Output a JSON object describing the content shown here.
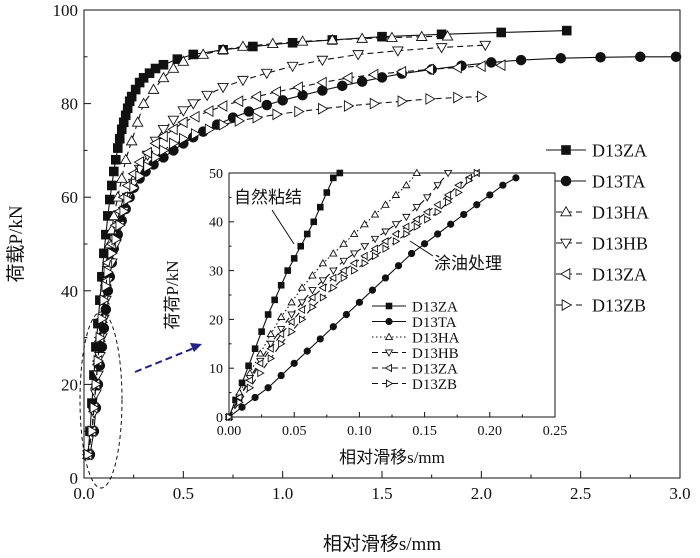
{
  "chart_data": [
    {
      "type": "line",
      "xlabel": "相对滑移s/mm",
      "ylabel": "荷载P/kN",
      "xlim": [
        0,
        3.0
      ],
      "ylim": [
        0,
        100
      ],
      "xticks": [
        "0.0",
        "0.5",
        "1.0",
        "1.5",
        "2.0",
        "2.5",
        "3.0"
      ],
      "yticks": [
        "0",
        "20",
        "40",
        "60",
        "80",
        "100"
      ],
      "legend_position": "right",
      "series": [
        {
          "name": "D13ZA",
          "style": "solid",
          "marker": "square-filled",
          "x": [
            0.02,
            0.03,
            0.04,
            0.05,
            0.06,
            0.07,
            0.08,
            0.09,
            0.1,
            0.11,
            0.12,
            0.13,
            0.14,
            0.15,
            0.16,
            0.17,
            0.18,
            0.19,
            0.2,
            0.21,
            0.22,
            0.23,
            0.24,
            0.26,
            0.28,
            0.3,
            0.33,
            0.36,
            0.4,
            0.47,
            0.55,
            0.7,
            0.85,
            1.05,
            1.25,
            1.5,
            1.8,
            2.1,
            2.43
          ],
          "y": [
            5,
            10,
            16,
            22,
            28,
            33,
            38,
            43,
            48,
            52,
            56,
            59.5,
            62.5,
            65.5,
            68,
            70.5,
            72.5,
            74.5,
            76,
            77.5,
            79,
            80.5,
            81.5,
            83,
            84.5,
            85.5,
            86.5,
            87.5,
            88.3,
            89.5,
            90.5,
            91.5,
            92.2,
            93,
            93.6,
            94.3,
            94.8,
            95.2,
            95.6
          ]
        },
        {
          "name": "D13TA",
          "style": "solid",
          "marker": "circle-filled",
          "x": [
            0.03,
            0.05,
            0.06,
            0.07,
            0.08,
            0.09,
            0.1,
            0.11,
            0.12,
            0.13,
            0.14,
            0.15,
            0.17,
            0.19,
            0.21,
            0.23,
            0.25,
            0.28,
            0.31,
            0.35,
            0.4,
            0.45,
            0.5,
            0.55,
            0.6,
            0.67,
            0.75,
            0.83,
            0.92,
            1.0,
            1.1,
            1.2,
            1.3,
            1.4,
            1.5,
            1.6,
            1.75,
            1.9,
            2.05,
            2.2,
            2.4,
            2.6,
            2.8,
            2.98
          ],
          "y": [
            5,
            10,
            15,
            20,
            24,
            28,
            32,
            36,
            40,
            43,
            46,
            49,
            52,
            55,
            57.5,
            60,
            62,
            64,
            65.5,
            67,
            68.5,
            70,
            71.5,
            72.8,
            74,
            75.5,
            77,
            78.3,
            79.7,
            80.7,
            81.8,
            82.8,
            83.8,
            84.7,
            85.6,
            86.4,
            87.3,
            88.1,
            88.8,
            89.3,
            89.7,
            89.9,
            90,
            90
          ]
        },
        {
          "name": "D13HA",
          "style": "dashed",
          "marker": "triangle-up-open",
          "x": [
            0.02,
            0.04,
            0.05,
            0.06,
            0.07,
            0.08,
            0.09,
            0.1,
            0.11,
            0.12,
            0.13,
            0.14,
            0.15,
            0.17,
            0.19,
            0.21,
            0.24,
            0.27,
            0.3,
            0.35,
            0.4,
            0.45,
            0.5,
            0.6,
            0.7,
            0.8,
            0.95,
            1.1,
            1.25,
            1.4,
            1.55,
            1.7,
            1.83
          ],
          "y": [
            5,
            10,
            15,
            20,
            25,
            30,
            34,
            38,
            42,
            46,
            50,
            53,
            56,
            60,
            64,
            68,
            72,
            76,
            80,
            83,
            85.5,
            87.5,
            89,
            90.5,
            91.5,
            92.2,
            92.8,
            93.3,
            93.6,
            93.9,
            94.1,
            94.3,
            94.4
          ]
        },
        {
          "name": "D13HB",
          "style": "dashed",
          "marker": "triangle-down-open",
          "x": [
            0.02,
            0.04,
            0.05,
            0.06,
            0.07,
            0.08,
            0.09,
            0.1,
            0.11,
            0.12,
            0.14,
            0.16,
            0.18,
            0.2,
            0.22,
            0.25,
            0.28,
            0.32,
            0.36,
            0.4,
            0.45,
            0.5,
            0.55,
            0.62,
            0.7,
            0.8,
            0.92,
            1.05,
            1.2,
            1.38,
            1.58,
            1.8,
            2.02
          ],
          "y": [
            5,
            10,
            14,
            18,
            22,
            26,
            30,
            34,
            38,
            42,
            46,
            50,
            54,
            57,
            60,
            63,
            66,
            69,
            72,
            74.5,
            76.5,
            78.5,
            80,
            81.8,
            83.5,
            85,
            86.5,
            88,
            89.3,
            90.5,
            91.3,
            92,
            92.5
          ]
        },
        {
          "name": "D13ZA",
          "style": "dashed",
          "marker": "triangle-left-open",
          "x": [
            0.02,
            0.04,
            0.05,
            0.06,
            0.07,
            0.08,
            0.09,
            0.1,
            0.11,
            0.12,
            0.14,
            0.16,
            0.18,
            0.2,
            0.22,
            0.25,
            0.28,
            0.32,
            0.36,
            0.4,
            0.45,
            0.5,
            0.56,
            0.63,
            0.7,
            0.78,
            0.87,
            0.97,
            1.08,
            1.2,
            1.33,
            1.46,
            1.6,
            1.74,
            1.88,
            2.0,
            2.1
          ],
          "y": [
            5,
            10,
            15,
            20,
            25,
            30,
            34,
            38,
            42,
            46,
            50,
            54,
            57,
            60,
            62.5,
            65,
            67.5,
            69.5,
            71.5,
            73,
            74.5,
            76,
            77.2,
            78.4,
            79.5,
            80.5,
            81.5,
            82.5,
            83.5,
            84.5,
            85.5,
            86.2,
            86.8,
            87.3,
            87.7,
            88,
            88.2
          ]
        },
        {
          "name": "D13ZB",
          "style": "dashed",
          "marker": "triangle-right-open",
          "x": [
            0.02,
            0.04,
            0.05,
            0.06,
            0.07,
            0.08,
            0.09,
            0.1,
            0.11,
            0.12,
            0.14,
            0.16,
            0.18,
            0.2,
            0.22,
            0.25,
            0.28,
            0.32,
            0.36,
            0.4,
            0.45,
            0.5,
            0.56,
            0.63,
            0.7,
            0.78,
            0.87,
            0.97,
            1.08,
            1.2,
            1.33,
            1.46,
            1.6,
            1.74,
            1.88,
            2.0
          ],
          "y": [
            5,
            10,
            15,
            20,
            25,
            30,
            34,
            38,
            41,
            44,
            48,
            51,
            54,
            57,
            59.5,
            62,
            64.5,
            66.5,
            68.5,
            70,
            71.5,
            72.5,
            73.5,
            74.5,
            75.5,
            76.3,
            77,
            77.7,
            78.3,
            78.9,
            79.5,
            80,
            80.5,
            81,
            81.3,
            81.5
          ]
        }
      ]
    },
    {
      "type": "line",
      "xlabel": "相对滑移s/mm",
      "ylabel": "荷荷P/kN",
      "xlim": [
        0,
        0.25
      ],
      "ylim": [
        0,
        50
      ],
      "xticks": [
        "0.00",
        "0.05",
        "0.10",
        "0.15",
        "0.20",
        "0.25"
      ],
      "yticks": [
        "0",
        "10",
        "20",
        "30",
        "40",
        "50"
      ],
      "legend_position": "bottom-right",
      "annotations": [
        "自然粘结",
        "涂油处理"
      ],
      "series": [
        {
          "name": "D13ZA",
          "style": "solid",
          "marker": "square-filled",
          "x": [
            0.0,
            0.005,
            0.01,
            0.015,
            0.02,
            0.025,
            0.03,
            0.035,
            0.04,
            0.045,
            0.05,
            0.055,
            0.06,
            0.065,
            0.07,
            0.075,
            0.08,
            0.085
          ],
          "y": [
            0,
            3.5,
            7,
            10.5,
            14,
            17.5,
            21,
            24,
            27,
            30,
            32.5,
            35,
            37.5,
            40,
            43,
            46,
            49,
            50
          ]
        },
        {
          "name": "D13TA",
          "style": "solid",
          "marker": "circle-filled",
          "x": [
            0.0,
            0.01,
            0.02,
            0.03,
            0.04,
            0.05,
            0.06,
            0.07,
            0.08,
            0.09,
            0.1,
            0.11,
            0.12,
            0.13,
            0.14,
            0.15,
            0.16,
            0.17,
            0.18,
            0.19,
            0.2,
            0.21,
            0.22
          ],
          "y": [
            0,
            2,
            4,
            6,
            8.5,
            11,
            13.5,
            16,
            18.5,
            21,
            23.5,
            26,
            28.5,
            31,
            33.5,
            35.5,
            37.5,
            39.5,
            41.5,
            43.5,
            45.5,
            47.5,
            49
          ]
        },
        {
          "name": "D13HA",
          "style": "dotted",
          "marker": "triangle-up-open",
          "x": [
            0.0,
            0.008,
            0.016,
            0.024,
            0.032,
            0.04,
            0.048,
            0.056,
            0.064,
            0.072,
            0.08,
            0.088,
            0.096,
            0.104,
            0.112,
            0.12,
            0.128,
            0.136,
            0.144
          ],
          "y": [
            0,
            5,
            9,
            13,
            17,
            20.5,
            23.5,
            26.5,
            29,
            31.5,
            33.5,
            35.5,
            37.5,
            39.5,
            41.5,
            43.5,
            45.5,
            47.5,
            50
          ]
        },
        {
          "name": "D13HB",
          "style": "dashed",
          "marker": "triangle-down-open",
          "x": [
            0.0,
            0.008,
            0.016,
            0.024,
            0.032,
            0.04,
            0.048,
            0.056,
            0.064,
            0.072,
            0.08,
            0.088,
            0.096,
            0.104,
            0.112,
            0.12,
            0.128,
            0.136,
            0.144,
            0.152,
            0.16,
            0.168
          ],
          "y": [
            0,
            4,
            8,
            11.5,
            15,
            18,
            21,
            23.5,
            26,
            28,
            30,
            32,
            33.5,
            35,
            36.5,
            38,
            39.5,
            41,
            43,
            45,
            47.5,
            50
          ]
        },
        {
          "name": "D13ZA",
          "style": "dashed",
          "marker": "triangle-left-open",
          "x": [
            0.0,
            0.008,
            0.016,
            0.024,
            0.032,
            0.04,
            0.048,
            0.056,
            0.064,
            0.072,
            0.08,
            0.088,
            0.096,
            0.104,
            0.112,
            0.12,
            0.128,
            0.136,
            0.144,
            0.152,
            0.16,
            0.168,
            0.176,
            0.184,
            0.19
          ],
          "y": [
            0,
            4,
            7.5,
            11,
            14,
            17,
            19.5,
            22,
            24.5,
            26.5,
            28.5,
            30,
            31.5,
            33,
            34.5,
            36,
            37.5,
            39,
            40.5,
            42,
            43.5,
            45.5,
            47.5,
            49,
            50
          ]
        },
        {
          "name": "D13ZB",
          "style": "dashed",
          "marker": "triangle-right-open",
          "x": [
            0.0,
            0.008,
            0.016,
            0.024,
            0.032,
            0.04,
            0.048,
            0.056,
            0.064,
            0.072,
            0.08,
            0.088,
            0.096,
            0.104,
            0.112,
            0.12,
            0.128,
            0.136,
            0.144,
            0.152,
            0.16,
            0.168,
            0.176,
            0.184,
            0.19
          ],
          "y": [
            0,
            3,
            6,
            9,
            12,
            15,
            17.5,
            20,
            22.5,
            24.5,
            26.5,
            28.5,
            30,
            31.5,
            33,
            34.5,
            36,
            37.5,
            39,
            40.5,
            42,
            44,
            46,
            48.5,
            50
          ]
        }
      ]
    }
  ]
}
